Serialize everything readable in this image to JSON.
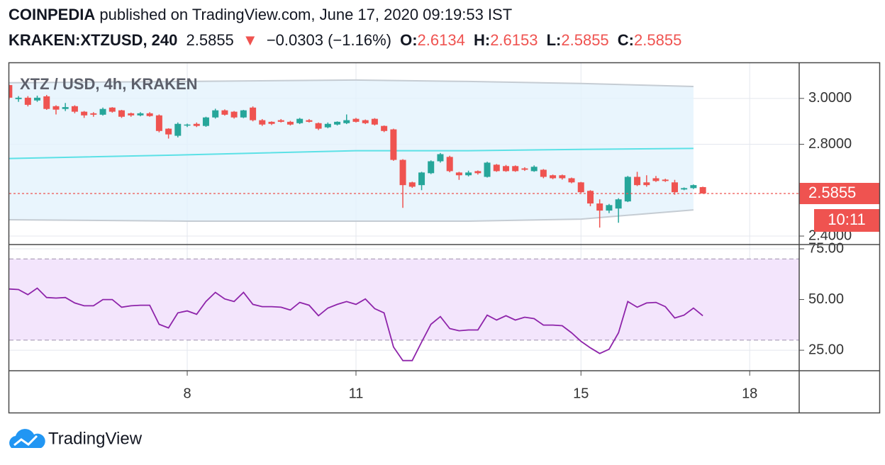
{
  "header": {
    "author": "COINPEDIA",
    "published": "published on TradingView.com, June 17, 2020 09:19:53 IST",
    "symbol": "KRAKEN:XTZUSD, 240",
    "arrow": "▼",
    "change": "−0.0303 (−1.16%)",
    "o": "O:",
    "h": "H:",
    "l": "L:",
    "c": "C:"
  },
  "footer": {
    "brand": "TradingView"
  },
  "chart_data": [
    {
      "type": "candlestick",
      "title": "XTZ / USD, 4h, KRAKEN",
      "up_color": "#26a69a",
      "down_color": "#ef5350",
      "x": [
        4.833,
        5,
        5.167,
        5.333,
        5.5,
        5.667,
        5.833,
        6,
        6.167,
        6.333,
        6.5,
        6.667,
        6.833,
        7,
        7.167,
        7.333,
        7.5,
        7.667,
        7.833,
        8,
        8.167,
        8.333,
        8.5,
        8.667,
        8.833,
        9,
        9.167,
        9.333,
        9.5,
        9.667,
        9.833,
        10,
        10.167,
        10.333,
        10.5,
        10.667,
        10.833,
        11,
        11.167,
        11.333,
        11.5,
        11.667,
        11.833,
        12,
        12.167,
        12.333,
        12.5,
        12.667,
        12.833,
        13,
        13.167,
        13.333,
        13.5,
        13.667,
        13.833,
        14,
        14.167,
        14.333,
        14.5,
        14.667,
        14.833,
        15,
        15.167,
        15.333,
        15.5,
        15.667,
        15.833,
        16,
        16.167,
        16.333,
        16.5,
        16.667,
        16.833,
        17,
        17.167
      ],
      "open": [
        3.058,
        2.997,
        3.003,
        2.991,
        3.009,
        2.966,
        2.954,
        2.966,
        2.942,
        2.935,
        2.929,
        2.96,
        2.948,
        2.935,
        2.926,
        2.935,
        2.926,
        2.868,
        2.837,
        2.883,
        2.889,
        2.88,
        2.917,
        2.948,
        2.942,
        2.917,
        2.96,
        2.905,
        2.898,
        2.905,
        2.898,
        2.892,
        2.905,
        2.892,
        2.874,
        2.886,
        2.892,
        2.911,
        2.905,
        2.911,
        2.88,
        2.865,
        2.732,
        2.634,
        2.622,
        2.674,
        2.726,
        2.745,
        2.677,
        2.665,
        2.683,
        2.658,
        2.711,
        2.705,
        2.705,
        2.695,
        2.683,
        2.689,
        2.665,
        2.665,
        2.652,
        2.634,
        2.597,
        2.542,
        2.511,
        2.52,
        2.551,
        2.658,
        2.634,
        2.652,
        2.646,
        2.634,
        2.603,
        2.609,
        2.6134
      ],
      "high": [
        3.06,
        3.01,
        3.01,
        3.012,
        3.015,
        2.97,
        2.98,
        2.97,
        2.945,
        2.94,
        2.96,
        2.962,
        2.95,
        2.938,
        2.94,
        2.94,
        2.93,
        2.87,
        2.895,
        2.89,
        2.895,
        2.92,
        2.955,
        2.952,
        2.945,
        2.95,
        2.965,
        2.91,
        2.9,
        2.91,
        2.902,
        2.915,
        2.91,
        2.895,
        2.895,
        2.9,
        2.93,
        2.915,
        2.908,
        2.914,
        2.882,
        2.868,
        2.735,
        2.637,
        2.68,
        2.73,
        2.762,
        2.75,
        2.68,
        2.685,
        2.686,
        2.724,
        2.714,
        2.71,
        2.708,
        2.7,
        2.708,
        2.692,
        2.668,
        2.668,
        2.655,
        2.636,
        2.6,
        2.56,
        2.54,
        2.565,
        2.662,
        2.68,
        2.665,
        2.662,
        2.65,
        2.645,
        2.612,
        2.625,
        2.6153
      ],
      "low": [
        2.995,
        2.985,
        2.965,
        2.985,
        2.95,
        2.93,
        2.945,
        2.935,
        2.915,
        2.92,
        2.925,
        2.938,
        2.915,
        2.92,
        2.922,
        2.92,
        2.852,
        2.825,
        2.83,
        2.875,
        2.875,
        2.876,
        2.912,
        2.925,
        2.912,
        2.914,
        2.9,
        2.88,
        2.884,
        2.895,
        2.882,
        2.888,
        2.895,
        2.862,
        2.87,
        2.882,
        2.888,
        2.895,
        2.888,
        2.882,
        2.853,
        2.728,
        2.523,
        2.61,
        2.6,
        2.67,
        2.72,
        2.678,
        2.645,
        2.66,
        2.668,
        2.655,
        2.68,
        2.68,
        2.68,
        2.684,
        2.68,
        2.652,
        2.648,
        2.646,
        2.63,
        2.588,
        2.53,
        2.437,
        2.5,
        2.458,
        2.548,
        2.618,
        2.615,
        2.636,
        2.636,
        2.58,
        2.6,
        2.605,
        2.5855
      ],
      "close": [
        3.003,
        3.003,
        2.972,
        3.003,
        2.954,
        2.951,
        2.962,
        2.942,
        2.926,
        2.929,
        2.954,
        2.942,
        2.92,
        2.926,
        2.935,
        2.923,
        2.858,
        2.843,
        2.889,
        2.886,
        2.88,
        2.917,
        2.948,
        2.929,
        2.917,
        2.948,
        2.905,
        2.886,
        2.889,
        2.898,
        2.886,
        2.911,
        2.898,
        2.868,
        2.889,
        2.898,
        2.905,
        2.898,
        2.892,
        2.886,
        2.858,
        2.732,
        2.622,
        2.615,
        2.677,
        2.726,
        2.757,
        2.683,
        2.665,
        2.677,
        2.674,
        2.72,
        2.683,
        2.683,
        2.683,
        2.689,
        2.702,
        2.658,
        2.652,
        2.652,
        2.634,
        2.591,
        2.542,
        2.511,
        2.535,
        2.56,
        2.658,
        2.622,
        2.622,
        2.64,
        2.64,
        2.591,
        2.609,
        2.622,
        2.5855
      ],
      "bands": {
        "x": [
          4.833,
          8,
          11,
          13,
          15,
          17
        ],
        "upper": [
          3.068,
          3.074,
          3.08,
          3.074,
          3.065,
          3.052
        ],
        "middle": [
          2.738,
          2.754,
          2.772,
          2.772,
          2.778,
          2.782
        ],
        "lower": [
          2.471,
          2.465,
          2.465,
          2.465,
          2.474,
          2.514
        ],
        "fill": "#e3f2fd",
        "edge_color": "#c5ccd3",
        "middle_color": "#5ce1e6"
      },
      "countdown": "10:11",
      "xlim": [
        4.835,
        18.88
      ],
      "xticks": [
        8,
        11,
        15,
        18
      ],
      "ylim": [
        2.363,
        3.157
      ],
      "yticks": [
        {
          "value": 2.4,
          "label": "2.4000"
        },
        {
          "value": 2.8,
          "label": "2.8000"
        },
        {
          "value": 3,
          "label": "3.0000"
        }
      ],
      "grid": true
    },
    {
      "type": "line",
      "color": "#8e24aa",
      "band": [
        30,
        70
      ],
      "band_fill": "#f3e5fc",
      "values": [
        55.2,
        54.9,
        52.4,
        55.6,
        51.0,
        50.7,
        51.0,
        48.3,
        46.9,
        46.9,
        50.0,
        50.0,
        46.2,
        46.9,
        47.2,
        47.2,
        37.8,
        36.0,
        43.4,
        44.4,
        42.7,
        49.0,
        53.5,
        50.3,
        49.0,
        53.5,
        47.6,
        46.5,
        46.5,
        46.2,
        44.8,
        48.6,
        47.2,
        42.0,
        45.8,
        47.6,
        49.0,
        47.6,
        50.3,
        45.5,
        43.4,
        26.6,
        19.9,
        19.9,
        29.0,
        37.8,
        41.6,
        35.7,
        34.6,
        35.0,
        35.0,
        42.3,
        39.9,
        42.0,
        39.9,
        41.3,
        40.6,
        37.4,
        37.4,
        37.1,
        33.6,
        29.4,
        26.2,
        23.4,
        25.5,
        33.6,
        49.0,
        46.2,
        48.3,
        48.6,
        46.5,
        40.9,
        42.3,
        45.8,
        42.0
      ],
      "ylim": [
        14.9,
        77.1
      ],
      "yticks": [
        {
          "value": 25,
          "label": "25.00"
        },
        {
          "value": 50,
          "label": "50.00"
        },
        {
          "value": 75,
          "label": "75.00"
        }
      ],
      "grid": true
    }
  ]
}
